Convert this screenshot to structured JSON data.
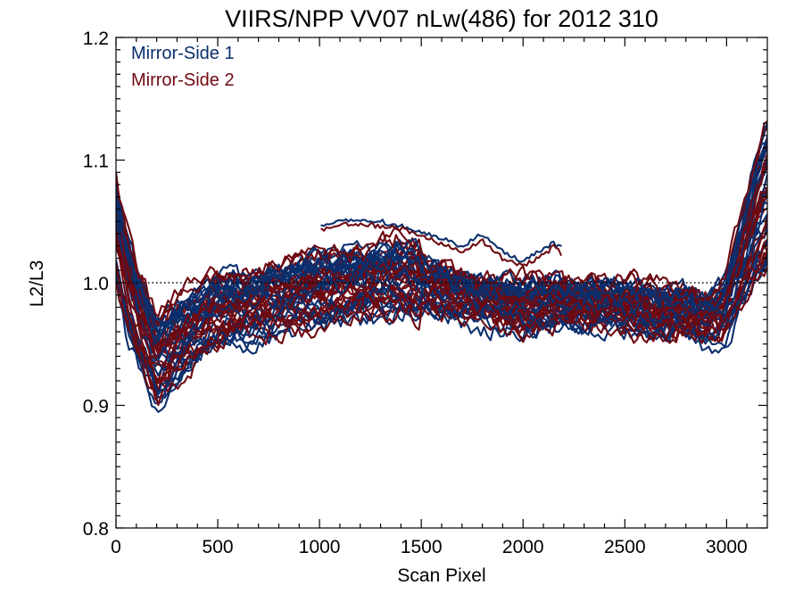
{
  "chart_data": {
    "type": "line",
    "title": "VIIRS/NPP VV07 nLw(486) for 2012 310",
    "xlabel": "Scan Pixel",
    "ylabel": "L2/L3",
    "xlim": [
      0,
      3200
    ],
    "ylim": [
      0.8,
      1.2
    ],
    "xticks": [
      0,
      500,
      1000,
      1500,
      2000,
      2500,
      3000
    ],
    "xtick_labels": [
      "0",
      "500",
      "1000",
      "1500",
      "2000",
      "2500",
      "3000"
    ],
    "yticks": [
      0.8,
      0.9,
      1.0,
      1.1,
      1.2
    ],
    "ytick_labels": [
      "0.8",
      "0.9",
      "1.0",
      "1.1",
      "1.2"
    ],
    "reference_line": {
      "y": 1.0,
      "style": "dotted",
      "color": "#000000"
    },
    "legend": {
      "placement": "top-left",
      "framed": false
    },
    "grid": false,
    "series": [
      {
        "name": "Mirror-Side 1",
        "color": "#0b2f6d",
        "curve_count": 24,
        "representative_profile": {
          "x": [
            0,
            25,
            60,
            100,
            150,
            200,
            260,
            330,
            400,
            500,
            600,
            700,
            800,
            900,
            1000,
            1100,
            1200,
            1300,
            1400,
            1500,
            1600,
            1700,
            1800,
            1900,
            2000,
            2100,
            2200,
            2300,
            2400,
            2500,
            2600,
            2700,
            2800,
            2900,
            2950,
            3000,
            3050,
            3100,
            3150,
            3200
          ],
          "y": [
            1.04,
            1.02,
            0.995,
            0.975,
            0.955,
            0.935,
            0.945,
            0.955,
            0.965,
            0.975,
            0.978,
            0.982,
            0.986,
            0.99,
            0.993,
            0.996,
            0.999,
            1.002,
            1.004,
            1.0,
            0.993,
            0.988,
            0.985,
            0.983,
            0.98,
            0.982,
            0.983,
            0.98,
            0.982,
            0.98,
            0.978,
            0.976,
            0.975,
            0.97,
            0.972,
            0.98,
            0.995,
            1.015,
            1.03,
            1.04
          ]
        },
        "offset_range": [
          -0.045,
          0.045
        ]
      },
      {
        "name": "Mirror-Side 2",
        "color": "#6e0a12",
        "curve_count": 24,
        "representative_profile": {
          "x": [
            0,
            25,
            60,
            100,
            150,
            200,
            260,
            330,
            400,
            500,
            600,
            700,
            800,
            900,
            1000,
            1100,
            1200,
            1300,
            1400,
            1500,
            1600,
            1700,
            1800,
            1900,
            2000,
            2100,
            2200,
            2300,
            2400,
            2500,
            2600,
            2700,
            2800,
            2900,
            2950,
            3000,
            3050,
            3100,
            3150,
            3200
          ],
          "y": [
            1.04,
            1.02,
            0.995,
            0.975,
            0.955,
            0.935,
            0.945,
            0.955,
            0.965,
            0.975,
            0.978,
            0.982,
            0.986,
            0.99,
            0.993,
            0.996,
            0.999,
            1.002,
            1.004,
            1.0,
            0.993,
            0.988,
            0.985,
            0.983,
            0.98,
            0.982,
            0.983,
            0.98,
            0.982,
            0.98,
            0.978,
            0.976,
            0.975,
            0.97,
            0.972,
            0.98,
            0.995,
            1.015,
            1.03,
            1.04
          ]
        },
        "offset_range": [
          -0.045,
          0.045
        ]
      }
    ],
    "partial_segments": [
      {
        "series": "Mirror-Side 1",
        "x": [
          1010,
          1100,
          1200,
          1300,
          1400,
          1500,
          1600,
          1700,
          1800,
          1900,
          2000,
          2100,
          2150,
          2190
        ],
        "y": [
          1.047,
          1.05,
          1.052,
          1.05,
          1.046,
          1.042,
          1.036,
          1.03,
          1.04,
          1.025,
          1.018,
          1.028,
          1.032,
          1.028
        ]
      },
      {
        "series": "Mirror-Side 2",
        "x": [
          1010,
          1100,
          1200,
          1300,
          1400,
          1500,
          1600,
          1700,
          1800,
          1900,
          2000,
          2100,
          2150,
          2190
        ],
        "y": [
          1.044,
          1.047,
          1.048,
          1.046,
          1.044,
          1.038,
          1.032,
          1.026,
          1.034,
          1.02,
          1.014,
          1.022,
          1.03,
          1.024
        ]
      }
    ]
  }
}
